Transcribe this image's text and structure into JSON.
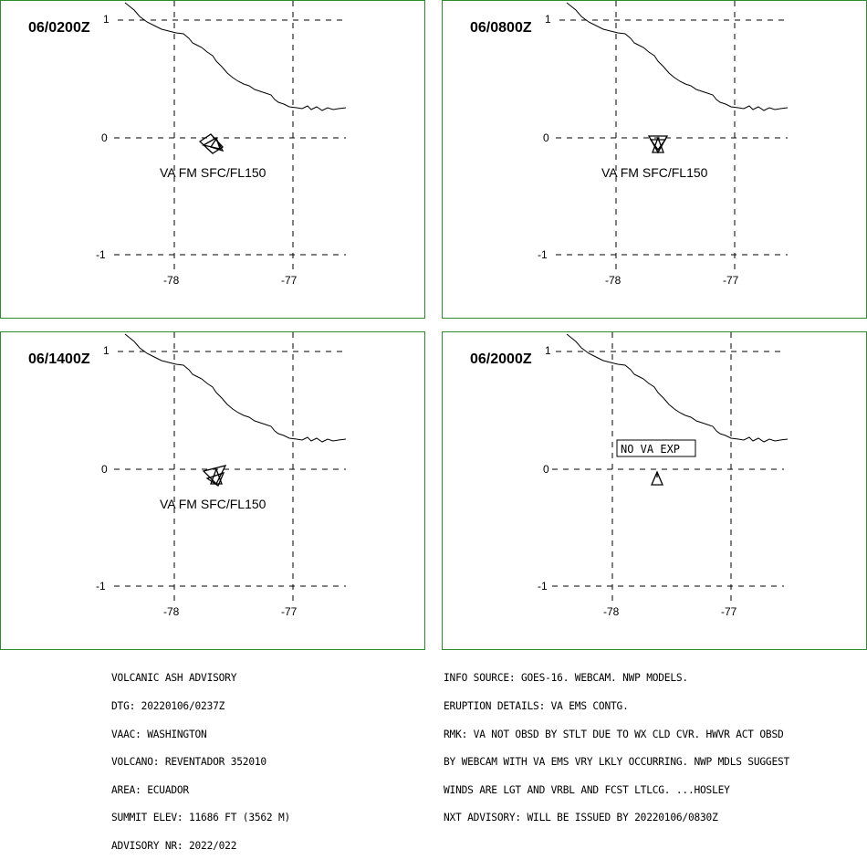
{
  "panels": [
    {
      "time": "06/0200Z",
      "label": "VA FM SFC/FL150",
      "ash": "a",
      "lat_ticks": [
        "1",
        "0",
        "-1"
      ],
      "lon_ticks": [
        "-78",
        "-77"
      ]
    },
    {
      "time": "06/0800Z",
      "label": "VA FM SFC/FL150",
      "ash": "b",
      "lat_ticks": [
        "1",
        "0",
        "-1"
      ],
      "lon_ticks": [
        "-78",
        "-77"
      ]
    },
    {
      "time": "06/1400Z",
      "label": "VA FM SFC/FL150",
      "ash": "c",
      "lat_ticks": [
        "1",
        "0",
        "-1"
      ],
      "lon_ticks": [
        "-78",
        "-77"
      ]
    },
    {
      "time": "06/2000Z",
      "label": "NO VA EXP",
      "ash": "none",
      "lat_ticks": [
        "1",
        "0",
        "-1"
      ],
      "lon_ticks": [
        "-78",
        "-77"
      ]
    }
  ],
  "advisory_left": [
    "VOLCANIC ASH ADVISORY",
    "DTG: 20220106/0237Z",
    "VAAC: WASHINGTON",
    "VOLCANO: REVENTADOR 352010",
    "AREA: ECUADOR",
    "SUMMIT ELEV: 11686 FT (3562 M)",
    "ADVISORY NR: 2022/022"
  ],
  "advisory_right": [
    "INFO SOURCE: GOES-16. WEBCAM. NWP MODELS.",
    "ERUPTION DETAILS: VA EMS CONTG.",
    "RMK: VA NOT OBSD BY STLT DUE TO WX CLD CVR. HWVR ACT OBSD",
    "BY WEBCAM WITH VA EMS VRY LKLY OCCURRING. NWP MDLS SUGGEST",
    "WINDS ARE LGT AND VRBL AND FCST LTLCG. ...HOSLEY",
    "NXT ADVISORY: WILL BE ISSUED BY 20220106/0830Z"
  ],
  "colors": {
    "frame": "#2e8b2e",
    "ink": "#000000",
    "background": "#ffffff"
  }
}
